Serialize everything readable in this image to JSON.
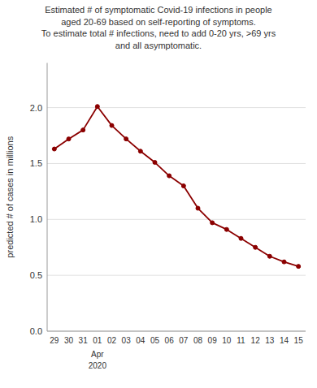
{
  "chart_data": {
    "type": "line",
    "title": "Estimated # of symptomatic Covid-19 infections in people\naged 20-69 based on self-reporting of symptoms.\nTo estimate total # infections, need to add 0-20 yrs, >69 yrs\nand all asymptomatic.",
    "ylabel": "predicted # of cases in millions",
    "categories": [
      "29",
      "30",
      "31",
      "01",
      "02",
      "03",
      "04",
      "05",
      "06",
      "07",
      "08",
      "09",
      "10",
      "11",
      "12",
      "13",
      "14",
      "15"
    ],
    "values": [
      1.63,
      1.72,
      1.8,
      2.01,
      1.84,
      1.72,
      1.61,
      1.51,
      1.39,
      1.3,
      1.1,
      0.97,
      0.91,
      0.83,
      0.75,
      0.67,
      0.62,
      0.58
    ],
    "color": "#8B0000",
    "marker": "circle",
    "ylim": [
      0.0,
      2.4
    ],
    "yticks": [
      {
        "value": 0,
        "label": "0.0"
      },
      0.5,
      {
        "value": 1,
        "label": "1.0"
      },
      1.5,
      {
        "value": 2,
        "label": "2.0"
      }
    ],
    "grid": true,
    "annotations": [
      {
        "text": "Apr",
        "x": "01"
      },
      {
        "text": "2020",
        "x": "01"
      }
    ]
  }
}
